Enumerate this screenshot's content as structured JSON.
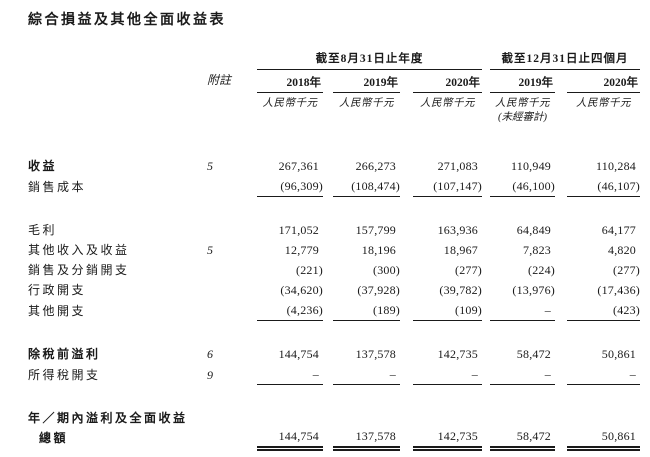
{
  "page": {
    "title": "綜合損益及其他全面收益表",
    "background_color": "#ffffff",
    "text_color": "#1a1a1a",
    "rule_color": "#1a1a1a"
  },
  "table": {
    "note_column_header": "附註",
    "currency_unit": "人民幣千元",
    "unaudited_note": "(未經審計)",
    "column_groups": [
      {
        "title": "截至8月31日止年度",
        "years": [
          "2018年",
          "2019年",
          "2020年"
        ]
      },
      {
        "title": "截至12月31日止四個月",
        "years": [
          "2019年",
          "2020年"
        ]
      }
    ],
    "rows": [
      {
        "label": "收益",
        "bold": true,
        "note": "5",
        "values": [
          "267,361",
          "266,273",
          "271,083",
          "110,949",
          "110,284"
        ],
        "underline": "none"
      },
      {
        "label": "銷售成本",
        "note": "",
        "values": [
          "(96,309)",
          "(108,474)",
          "(107,147)",
          "(46,100)",
          "(46,107)"
        ],
        "underline": "single"
      },
      {
        "label": "毛利",
        "section_start": true,
        "values": [
          "171,052",
          "157,799",
          "163,936",
          "64,849",
          "64,177"
        ],
        "underline": "none"
      },
      {
        "label": "其他收入及收益",
        "note": "5",
        "values": [
          "12,779",
          "18,196",
          "18,967",
          "7,823",
          "4,820"
        ],
        "underline": "none"
      },
      {
        "label": "銷售及分銷開支",
        "values": [
          "(221)",
          "(300)",
          "(277)",
          "(224)",
          "(277)"
        ],
        "underline": "none"
      },
      {
        "label": "行政開支",
        "values": [
          "(34,620)",
          "(37,928)",
          "(39,782)",
          "(13,976)",
          "(17,436)"
        ],
        "underline": "none"
      },
      {
        "label": "其他開支",
        "values": [
          "(4,236)",
          "(189)",
          "(109)",
          "–",
          "(423)"
        ],
        "underline": "single"
      },
      {
        "label": "除稅前溢利",
        "bold": true,
        "note": "6",
        "section_start": true,
        "values": [
          "144,754",
          "137,578",
          "142,735",
          "58,472",
          "50,861"
        ],
        "underline": "none"
      },
      {
        "label": "所得稅開支",
        "note": "9",
        "values": [
          "–",
          "–",
          "–",
          "–",
          "–"
        ],
        "underline": "single"
      },
      {
        "label": "年／期內溢利及全面收益",
        "label2": "總額",
        "bold": true,
        "section_start": true,
        "values": [
          "144,754",
          "137,578",
          "142,735",
          "58,472",
          "50,861"
        ],
        "underline": "double"
      }
    ]
  }
}
